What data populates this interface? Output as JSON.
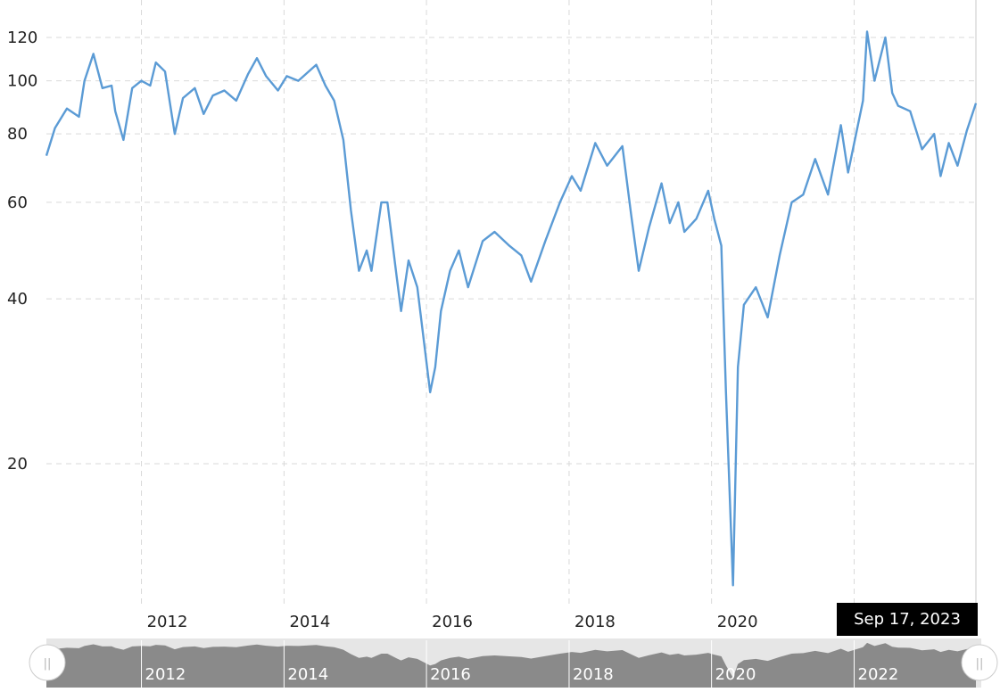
{
  "chart_data": {
    "type": "line",
    "title": "",
    "xlabel": "",
    "ylabel": "",
    "y_scale": "log",
    "ylim": [
      12,
      128
    ],
    "xlim": [
      "2010-09-01",
      "2023-09-17"
    ],
    "y_ticks": [
      {
        "value": 20,
        "label": "20"
      },
      {
        "value": 40,
        "label": "40"
      },
      {
        "value": 60,
        "label": "60"
      },
      {
        "value": 80,
        "label": "80"
      },
      {
        "value": 100,
        "label": "100"
      },
      {
        "value": 120,
        "label": "120"
      }
    ],
    "x_ticks": [
      {
        "date": "2012-01-01",
        "label": "2012"
      },
      {
        "date": "2014-01-01",
        "label": "2014"
      },
      {
        "date": "2016-01-01",
        "label": "2016"
      },
      {
        "date": "2018-01-01",
        "label": "2018"
      },
      {
        "date": "2020-01-01",
        "label": "2020"
      }
    ],
    "grid": true,
    "line_color": "#5b9bd5",
    "series": [
      {
        "points": [
          [
            "2010-09-01",
            73
          ],
          [
            "2010-10-15",
            82
          ],
          [
            "2010-12-15",
            89
          ],
          [
            "2011-02-15",
            86
          ],
          [
            "2011-03-15",
            100
          ],
          [
            "2011-04-30",
            112
          ],
          [
            "2011-06-15",
            97
          ],
          [
            "2011-08-01",
            98
          ],
          [
            "2011-08-20",
            88
          ],
          [
            "2011-10-01",
            78
          ],
          [
            "2011-11-15",
            97
          ],
          [
            "2012-01-01",
            100
          ],
          [
            "2012-02-15",
            98
          ],
          [
            "2012-03-15",
            108
          ],
          [
            "2012-05-01",
            104
          ],
          [
            "2012-06-20",
            80
          ],
          [
            "2012-08-01",
            93
          ],
          [
            "2012-10-01",
            97
          ],
          [
            "2012-11-15",
            87
          ],
          [
            "2013-01-01",
            94
          ],
          [
            "2013-03-01",
            96
          ],
          [
            "2013-05-01",
            92
          ],
          [
            "2013-07-01",
            103
          ],
          [
            "2013-08-15",
            110
          ],
          [
            "2013-10-01",
            102
          ],
          [
            "2013-12-01",
            96
          ],
          [
            "2014-01-15",
            102
          ],
          [
            "2014-03-15",
            100
          ],
          [
            "2014-06-15",
            107
          ],
          [
            "2014-08-01",
            98
          ],
          [
            "2014-09-15",
            92
          ],
          [
            "2014-11-01",
            78
          ],
          [
            "2014-12-10",
            58
          ],
          [
            "2015-01-20",
            45
          ],
          [
            "2015-03-01",
            49
          ],
          [
            "2015-03-25",
            45
          ],
          [
            "2015-05-15",
            60
          ],
          [
            "2015-06-15",
            60
          ],
          [
            "2015-08-01",
            44
          ],
          [
            "2015-08-24",
            38
          ],
          [
            "2015-10-01",
            47
          ],
          [
            "2015-11-15",
            42
          ],
          [
            "2016-01-20",
            27
          ],
          [
            "2016-02-15",
            30
          ],
          [
            "2016-03-15",
            38
          ],
          [
            "2016-05-01",
            45
          ],
          [
            "2016-06-15",
            49
          ],
          [
            "2016-08-01",
            42
          ],
          [
            "2016-10-15",
            51
          ],
          [
            "2016-12-15",
            53
          ],
          [
            "2017-03-01",
            50
          ],
          [
            "2017-05-01",
            48
          ],
          [
            "2017-06-20",
            43
          ],
          [
            "2017-09-01",
            51
          ],
          [
            "2017-11-15",
            60
          ],
          [
            "2018-01-15",
            67
          ],
          [
            "2018-03-01",
            63
          ],
          [
            "2018-05-15",
            77
          ],
          [
            "2018-07-15",
            70
          ],
          [
            "2018-10-01",
            76
          ],
          [
            "2018-11-15",
            57
          ],
          [
            "2018-12-24",
            45
          ],
          [
            "2019-02-15",
            54
          ],
          [
            "2019-04-20",
            65
          ],
          [
            "2019-06-01",
            55
          ],
          [
            "2019-07-15",
            60
          ],
          [
            "2019-08-15",
            53
          ],
          [
            "2019-10-15",
            56
          ],
          [
            "2019-12-15",
            63
          ],
          [
            "2020-01-15",
            56
          ],
          [
            "2020-02-20",
            50
          ],
          [
            "2020-03-15",
            27
          ],
          [
            "2020-04-20",
            12
          ],
          [
            "2020-05-15",
            30
          ],
          [
            "2020-06-15",
            39
          ],
          [
            "2020-08-15",
            42
          ],
          [
            "2020-10-15",
            37
          ],
          [
            "2020-12-15",
            48
          ],
          [
            "2021-02-15",
            60
          ],
          [
            "2021-04-15",
            62
          ],
          [
            "2021-06-15",
            72
          ],
          [
            "2021-08-20",
            62
          ],
          [
            "2021-10-25",
            83
          ],
          [
            "2021-12-01",
            68
          ],
          [
            "2022-02-15",
            92
          ],
          [
            "2022-03-08",
            123
          ],
          [
            "2022-04-15",
            100
          ],
          [
            "2022-06-10",
            120
          ],
          [
            "2022-07-15",
            95
          ],
          [
            "2022-08-15",
            90
          ],
          [
            "2022-10-15",
            88
          ],
          [
            "2022-12-15",
            75
          ],
          [
            "2023-02-15",
            80
          ],
          [
            "2023-03-20",
            67
          ],
          [
            "2023-05-01",
            77
          ],
          [
            "2023-06-15",
            70
          ],
          [
            "2023-08-01",
            81
          ],
          [
            "2023-09-17",
            91
          ]
        ]
      }
    ]
  },
  "tooltip": {
    "date_label": "Sep 17, 2023"
  },
  "navigator": {
    "labels": [
      "2012",
      "2014",
      "2016",
      "2018",
      "2020",
      "2022"
    ],
    "left_handle_glyph": "||",
    "right_handle_glyph": "||"
  }
}
